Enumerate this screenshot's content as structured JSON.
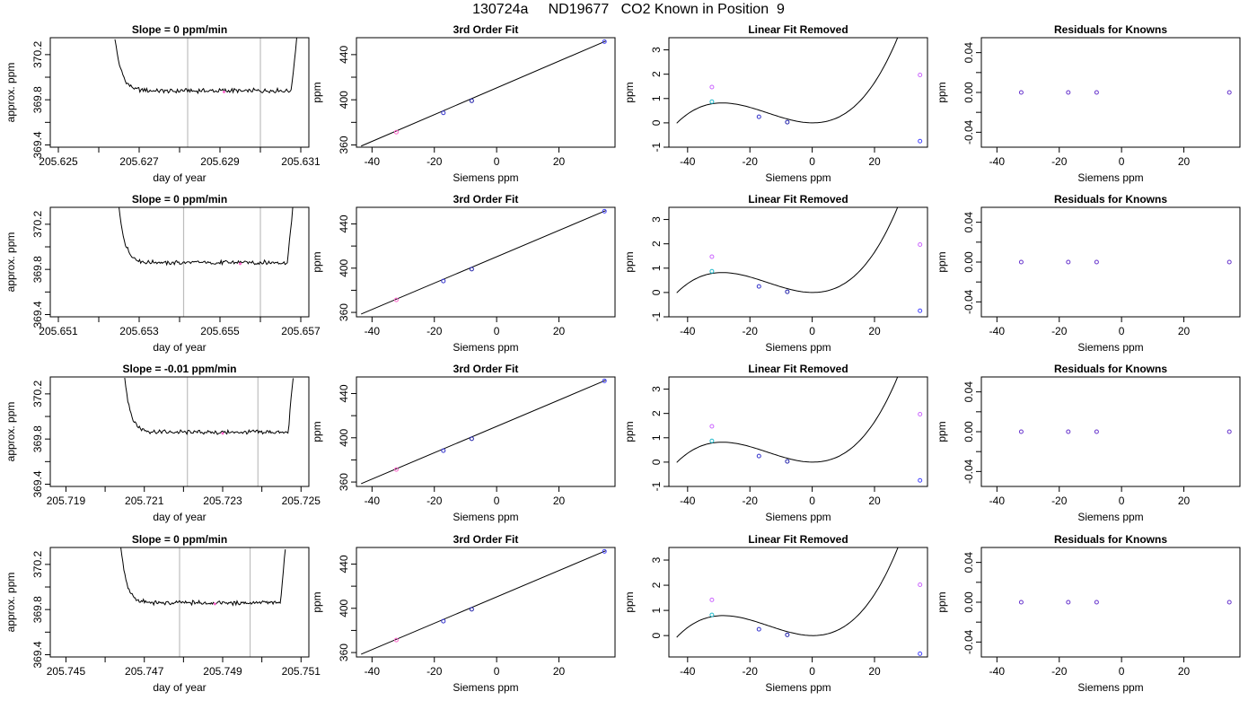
{
  "page": {
    "title": "130724a     ND19677   CO2 Known in Position  9"
  },
  "styles": {
    "trace_color": "#000000",
    "guide_color": "#bdbdbd",
    "fit_color": "#000000",
    "point_colors": [
      "#ff66cc",
      "#3333cc",
      "#2222aa",
      "#4444ff"
    ],
    "cyan_point": "#22bbcc",
    "magenta_point": "#cc66ff",
    "residual_point": "#6633cc"
  },
  "chart_data": [
    {
      "row": 1,
      "col": 1,
      "type": "line",
      "title": "Slope =  0  ppm/min",
      "xlabel": "day of year",
      "ylabel": "approx. ppm",
      "xlim": [
        205.6248,
        205.6312
      ],
      "ylim": [
        369.38,
        370.35
      ],
      "xticks": [
        205.625,
        205.626,
        205.627,
        205.628,
        205.629,
        205.63,
        205.631
      ],
      "xticklabels": [
        "205.625",
        "",
        "205.627",
        "",
        "205.629",
        "",
        "205.631"
      ],
      "yticks": [
        369.4,
        369.6,
        369.8,
        370.0,
        370.2
      ],
      "yticklabels": [
        "369.4",
        "",
        "369.8",
        "",
        "370.2"
      ],
      "trace": {
        "x_start": 205.6264,
        "x_end": 205.6309,
        "level": 369.88,
        "rise_left": 370.35,
        "rise_right": 370.35
      },
      "guides": [
        205.6282,
        205.63
      ],
      "marker": {
        "x": 205.6291,
        "y": 369.87
      }
    },
    {
      "row": 1,
      "col": 2,
      "type": "scatter",
      "title": "3rd Order Fit",
      "xlabel": "Siemens ppm",
      "ylabel": "ppm",
      "xlim": [
        -45,
        38
      ],
      "ylim": [
        358,
        455
      ],
      "xticks": [
        -40,
        -20,
        0,
        20
      ],
      "xticklabels": [
        "-40",
        "-20",
        "0",
        "20"
      ],
      "yticks": [
        360,
        380,
        400,
        420,
        440
      ],
      "yticklabels": [
        "360",
        "",
        "400",
        "",
        "440"
      ],
      "points": [
        {
          "x": -32.2,
          "y": 371.3
        },
        {
          "x": -17.1,
          "y": 388.4
        },
        {
          "x": -8.0,
          "y": 399.1
        },
        {
          "x": 34.6,
          "y": 451.5
        }
      ],
      "fit": {
        "x0": -43.5,
        "y0": 359.0,
        "x1": 35.0,
        "y1": 452.0
      }
    },
    {
      "row": 1,
      "col": 3,
      "type": "scatter",
      "title": "Linear Fit Removed",
      "xlabel": "Siemens ppm",
      "ylabel": "ppm",
      "xlim": [
        -46,
        37
      ],
      "ylim": [
        -1.0,
        3.5
      ],
      "xticks": [
        -40,
        -20,
        0,
        20
      ],
      "xticklabels": [
        "-40",
        "-20",
        "0",
        "20"
      ],
      "yticks": [
        -1,
        0,
        1,
        2,
        3
      ],
      "yticklabels": [
        "-1",
        "0",
        "1",
        "2",
        "3"
      ],
      "points": [
        {
          "x": -32.2,
          "y": 1.47
        },
        {
          "x": -32.2,
          "y": 0.87
        },
        {
          "x": -17.1,
          "y": 0.25
        },
        {
          "x": -8.0,
          "y": 0.03
        },
        {
          "x": 34.6,
          "y": 1.97
        },
        {
          "x": 34.6,
          "y": -0.75
        }
      ],
      "curve": {
        "x_start": -43.5,
        "x_end": 35.0,
        "cubic": [
          6.68e-05,
          0.00287,
          -0.00118,
          0.0
        ]
      }
    },
    {
      "row": 1,
      "col": 4,
      "type": "scatter",
      "title": "Residuals for Knowns",
      "xlabel": "Siemens ppm",
      "ylabel": "ppm",
      "xlim": [
        -45,
        38
      ],
      "ylim": [
        -0.055,
        0.055
      ],
      "xticks": [
        -40,
        -20,
        0,
        20
      ],
      "xticklabels": [
        "-40",
        "-20",
        "0",
        "20"
      ],
      "yticks": [
        -0.04,
        -0.02,
        0.0,
        0.02,
        0.04
      ],
      "yticklabels": [
        "-0.04",
        "",
        "0.00",
        "",
        "0.04"
      ],
      "points": [
        {
          "x": -32.2,
          "y": 0.0
        },
        {
          "x": -17.1,
          "y": 0.0
        },
        {
          "x": -8.0,
          "y": 0.0
        },
        {
          "x": 34.6,
          "y": 0.0
        }
      ]
    },
    {
      "row": 2,
      "col": 1,
      "type": "line",
      "title": "Slope =  0  ppm/min",
      "xlabel": "day of year",
      "ylabel": "approx. ppm",
      "xlim": [
        205.6508,
        205.6572
      ],
      "ylim": [
        369.38,
        370.35
      ],
      "xticks": [
        205.651,
        205.652,
        205.653,
        205.654,
        205.655,
        205.656,
        205.657
      ],
      "xticklabels": [
        "205.651",
        "",
        "205.653",
        "",
        "205.655",
        "",
        "205.657"
      ],
      "yticks": [
        369.4,
        369.6,
        369.8,
        370.0,
        370.2
      ],
      "yticklabels": [
        "369.4",
        "",
        "369.8",
        "",
        "370.2"
      ],
      "trace": {
        "x_start": 205.6525,
        "x_end": 205.6568,
        "level": 369.86,
        "rise_left": 370.35,
        "rise_right": 370.35
      },
      "guides": [
        205.6541,
        205.656
      ],
      "marker": {
        "x": 205.6555,
        "y": 369.85
      }
    },
    {
      "row": 2,
      "col": 2,
      "type": "scatter",
      "title": "3rd Order Fit",
      "xlabel": "Siemens ppm",
      "ylabel": "ppm",
      "xlim": [
        -45,
        38
      ],
      "ylim": [
        356,
        455
      ],
      "xticks": [
        -40,
        -20,
        0,
        20
      ],
      "xticklabels": [
        "-40",
        "-20",
        "0",
        "20"
      ],
      "yticks": [
        360,
        380,
        400,
        420,
        440
      ],
      "yticklabels": [
        "360",
        "",
        "400",
        "",
        "440"
      ],
      "points": [
        {
          "x": -32.2,
          "y": 371.3
        },
        {
          "x": -17.1,
          "y": 388.4
        },
        {
          "x": -8.0,
          "y": 399.1
        },
        {
          "x": 34.6,
          "y": 451.5
        }
      ],
      "fit": {
        "x0": -43.5,
        "y0": 358.5,
        "x1": 35.0,
        "y1": 452.0
      }
    },
    {
      "row": 2,
      "col": 3,
      "type": "scatter",
      "title": "Linear Fit Removed",
      "xlabel": "Siemens ppm",
      "ylabel": "ppm",
      "xlim": [
        -46,
        37
      ],
      "ylim": [
        -1.0,
        3.5
      ],
      "xticks": [
        -40,
        -20,
        0,
        20
      ],
      "xticklabels": [
        "-40",
        "-20",
        "0",
        "20"
      ],
      "yticks": [
        -1,
        0,
        1,
        2,
        3
      ],
      "yticklabels": [
        "-1",
        "0",
        "1",
        "2",
        "3"
      ],
      "points": [
        {
          "x": -32.2,
          "y": 1.47
        },
        {
          "x": -32.2,
          "y": 0.87
        },
        {
          "x": -17.1,
          "y": 0.25
        },
        {
          "x": -8.0,
          "y": 0.03
        },
        {
          "x": 34.6,
          "y": 1.97
        },
        {
          "x": 34.6,
          "y": -0.75
        }
      ],
      "curve": {
        "x_start": -43.5,
        "x_end": 35.0,
        "cubic": [
          6.68e-05,
          0.00287,
          -0.00118,
          0.0
        ]
      }
    },
    {
      "row": 2,
      "col": 4,
      "type": "scatter",
      "title": "Residuals for Knowns",
      "xlabel": "Siemens ppm",
      "ylabel": "ppm",
      "xlim": [
        -45,
        38
      ],
      "ylim": [
        -0.055,
        0.055
      ],
      "xticks": [
        -40,
        -20,
        0,
        20
      ],
      "xticklabels": [
        "-40",
        "-20",
        "0",
        "20"
      ],
      "yticks": [
        -0.04,
        -0.02,
        0.0,
        0.02,
        0.04
      ],
      "yticklabels": [
        "-0.04",
        "",
        "0.00",
        "",
        "0.04"
      ],
      "points": [
        {
          "x": -32.2,
          "y": 0.0
        },
        {
          "x": -17.1,
          "y": 0.0
        },
        {
          "x": -8.0,
          "y": 0.0
        },
        {
          "x": 34.6,
          "y": 0.0
        }
      ]
    },
    {
      "row": 3,
      "col": 1,
      "type": "line",
      "title": "Slope =  -0.01  ppm/min",
      "xlabel": "day of year",
      "ylabel": "approx. ppm",
      "xlim": [
        205.7186,
        205.7252
      ],
      "ylim": [
        369.38,
        370.35
      ],
      "xticks": [
        205.719,
        205.72,
        205.721,
        205.722,
        205.723,
        205.724,
        205.725
      ],
      "xticklabels": [
        "205.719",
        "",
        "205.721",
        "",
        "205.723",
        "",
        "205.725"
      ],
      "yticks": [
        369.4,
        369.6,
        369.8,
        370.0,
        370.2
      ],
      "yticklabels": [
        "369.4",
        "",
        "369.8",
        "",
        "370.2"
      ],
      "trace": {
        "x_start": 205.7205,
        "x_end": 205.7248,
        "level": 369.86,
        "rise_left": 370.35,
        "rise_right": 370.35
      },
      "guides": [
        205.7221,
        205.7239
      ],
      "marker": {
        "x": 205.723,
        "y": 369.85
      }
    },
    {
      "row": 3,
      "col": 2,
      "type": "scatter",
      "title": "3rd Order Fit",
      "xlabel": "Siemens ppm",
      "ylabel": "ppm",
      "xlim": [
        -45,
        38
      ],
      "ylim": [
        356,
        455
      ],
      "xticks": [
        -40,
        -20,
        0,
        20
      ],
      "xticklabels": [
        "-40",
        "-20",
        "0",
        "20"
      ],
      "yticks": [
        360,
        380,
        400,
        420,
        440
      ],
      "yticklabels": [
        "360",
        "",
        "400",
        "",
        "440"
      ],
      "points": [
        {
          "x": -32.2,
          "y": 371.3
        },
        {
          "x": -17.1,
          "y": 388.4
        },
        {
          "x": -8.0,
          "y": 399.1
        },
        {
          "x": 34.6,
          "y": 451.5
        }
      ],
      "fit": {
        "x0": -43.5,
        "y0": 358.5,
        "x1": 35.0,
        "y1": 452.0
      }
    },
    {
      "row": 3,
      "col": 3,
      "type": "scatter",
      "title": "Linear Fit Removed",
      "xlabel": "Siemens ppm",
      "ylabel": "ppm",
      "xlim": [
        -46,
        37
      ],
      "ylim": [
        -1.0,
        3.5
      ],
      "xticks": [
        -40,
        -20,
        0,
        20
      ],
      "xticklabels": [
        "-40",
        "-20",
        "0",
        "20"
      ],
      "yticks": [
        -1,
        0,
        1,
        2,
        3
      ],
      "yticklabels": [
        "-1",
        "0",
        "1",
        "2",
        "3"
      ],
      "points": [
        {
          "x": -32.2,
          "y": 1.47
        },
        {
          "x": -32.2,
          "y": 0.87
        },
        {
          "x": -17.1,
          "y": 0.25
        },
        {
          "x": -8.0,
          "y": 0.03
        },
        {
          "x": 34.6,
          "y": 1.97
        },
        {
          "x": 34.6,
          "y": -0.75
        }
      ],
      "curve": {
        "x_start": -43.5,
        "x_end": 35.0,
        "cubic": [
          6.68e-05,
          0.00287,
          -0.00118,
          0.0
        ]
      }
    },
    {
      "row": 3,
      "col": 4,
      "type": "scatter",
      "title": "Residuals for Knowns",
      "xlabel": "Siemens ppm",
      "ylabel": "ppm",
      "xlim": [
        -45,
        38
      ],
      "ylim": [
        -0.055,
        0.055
      ],
      "xticks": [
        -40,
        -20,
        0,
        20
      ],
      "xticklabels": [
        "-40",
        "-20",
        "0",
        "20"
      ],
      "yticks": [
        -0.04,
        -0.02,
        0.0,
        0.02,
        0.04
      ],
      "yticklabels": [
        "-0.04",
        "",
        "0.00",
        "",
        "0.04"
      ],
      "points": [
        {
          "x": -32.2,
          "y": 0.0
        },
        {
          "x": -17.1,
          "y": 0.0
        },
        {
          "x": -8.0,
          "y": 0.0
        },
        {
          "x": 34.6,
          "y": 0.0
        }
      ]
    },
    {
      "row": 4,
      "col": 1,
      "type": "line",
      "title": "Slope =  0  ppm/min",
      "xlabel": "day of year",
      "ylabel": "approx. ppm",
      "xlim": [
        205.7446,
        205.7512
      ],
      "ylim": [
        369.38,
        370.35
      ],
      "xticks": [
        205.745,
        205.746,
        205.747,
        205.748,
        205.749,
        205.75,
        205.751
      ],
      "xticklabels": [
        "205.745",
        "",
        "205.747",
        "",
        "205.749",
        "",
        "205.751"
      ],
      "yticks": [
        369.4,
        369.6,
        369.8,
        370.0,
        370.2
      ],
      "yticklabels": [
        "369.4",
        "",
        "369.8",
        "",
        "370.2"
      ],
      "trace": {
        "x_start": 205.7464,
        "x_end": 205.7506,
        "level": 369.86,
        "rise_left": 370.35,
        "rise_right": 370.35
      },
      "guides": [
        205.7479,
        205.7497
      ],
      "marker": {
        "x": 205.7488,
        "y": 369.85
      }
    },
    {
      "row": 4,
      "col": 2,
      "type": "scatter",
      "title": "3rd Order Fit",
      "xlabel": "Siemens ppm",
      "ylabel": "ppm",
      "xlim": [
        -45,
        38
      ],
      "ylim": [
        356,
        455
      ],
      "xticks": [
        -40,
        -20,
        0,
        20
      ],
      "xticklabels": [
        "-40",
        "-20",
        "0",
        "20"
      ],
      "yticks": [
        360,
        380,
        400,
        420,
        440
      ],
      "yticklabels": [
        "360",
        "",
        "400",
        "",
        "440"
      ],
      "points": [
        {
          "x": -32.2,
          "y": 371.3
        },
        {
          "x": -17.1,
          "y": 388.4
        },
        {
          "x": -8.0,
          "y": 399.1
        },
        {
          "x": 34.6,
          "y": 451.5
        }
      ],
      "fit": {
        "x0": -43.5,
        "y0": 358.5,
        "x1": 35.0,
        "y1": 452.0
      }
    },
    {
      "row": 4,
      "col": 3,
      "type": "scatter",
      "title": "Linear Fit Removed",
      "xlabel": "Siemens ppm",
      "ylabel": "ppm",
      "xlim": [
        -46,
        37
      ],
      "ylim": [
        -0.85,
        3.5
      ],
      "xticks": [
        -40,
        -20,
        0,
        20
      ],
      "xticklabels": [
        "-40",
        "-20",
        "0",
        "20"
      ],
      "yticks": [
        0,
        1,
        2,
        3
      ],
      "yticklabels": [
        "0",
        "1",
        "2",
        "3"
      ],
      "points": [
        {
          "x": -32.2,
          "y": 1.42
        },
        {
          "x": -32.2,
          "y": 0.82
        },
        {
          "x": -17.1,
          "y": 0.25
        },
        {
          "x": -8.0,
          "y": 0.03
        },
        {
          "x": 34.6,
          "y": 2.02
        },
        {
          "x": 34.6,
          "y": -0.72
        }
      ],
      "curve": {
        "x_start": -43.5,
        "x_end": 35.0,
        "cubic": [
          6.65e-05,
          0.00283,
          -0.00118,
          0.0
        ]
      }
    },
    {
      "row": 4,
      "col": 4,
      "type": "scatter",
      "title": "Residuals for Knowns",
      "xlabel": "Siemens ppm",
      "ylabel": "ppm",
      "xlim": [
        -45,
        38
      ],
      "ylim": [
        -0.055,
        0.055
      ],
      "xticks": [
        -40,
        -20,
        0,
        20
      ],
      "xticklabels": [
        "-40",
        "-20",
        "0",
        "20"
      ],
      "yticks": [
        -0.04,
        -0.02,
        0.0,
        0.02,
        0.04
      ],
      "yticklabels": [
        "-0.04",
        "",
        "0.00",
        "",
        "0.04"
      ],
      "points": [
        {
          "x": -32.2,
          "y": 0.0
        },
        {
          "x": -17.1,
          "y": 0.0
        },
        {
          "x": -8.0,
          "y": 0.0
        },
        {
          "x": 34.6,
          "y": 0.0
        }
      ]
    }
  ]
}
